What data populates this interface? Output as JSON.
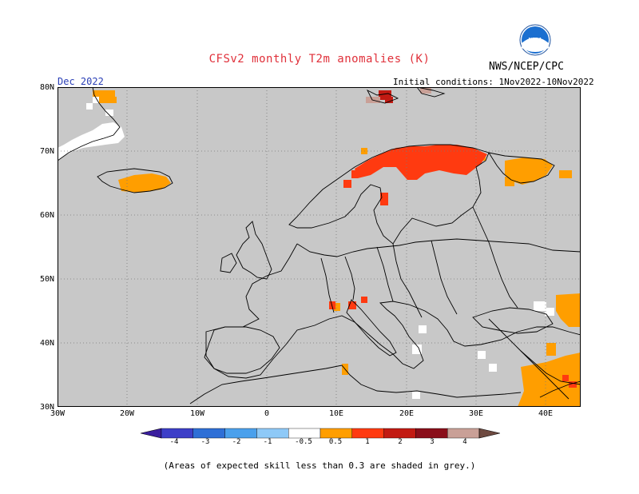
{
  "header": {
    "title": "CFSv2 monthly T2m anomalies (K)",
    "org": "NWS/NCEP/CPC",
    "month": "Dec 2022",
    "initial_conditions": "Initial conditions: 1Nov2022-10Nov2022",
    "logo_text": "NOAA"
  },
  "axes": {
    "lat_labels": [
      "80N",
      "70N",
      "60N",
      "50N",
      "40N",
      "30N"
    ],
    "lon_labels": [
      "30W",
      "20W",
      "10W",
      "0",
      "10E",
      "20E",
      "30E",
      "40E"
    ]
  },
  "colorbar": {
    "labels": [
      "-4",
      "-3",
      "-2",
      "-1",
      "-0.5",
      "0.5",
      "1",
      "2",
      "3",
      "4"
    ],
    "colors": [
      "#3a1e9e",
      "#3d3fc8",
      "#2e6fd6",
      "#4aa0ec",
      "#8ec9f7",
      "#ffffff",
      "#ff9e00",
      "#ff3a10",
      "#c21a12",
      "#8a0e1a",
      "#c9a097",
      "#6e4a40"
    ]
  },
  "map": {
    "background_color": "#c8c8c8",
    "no_skill_color": "#c8c8c8",
    "legend_note": "(Areas of expected skill less than 0.3 are shaded in grey.)"
  }
}
